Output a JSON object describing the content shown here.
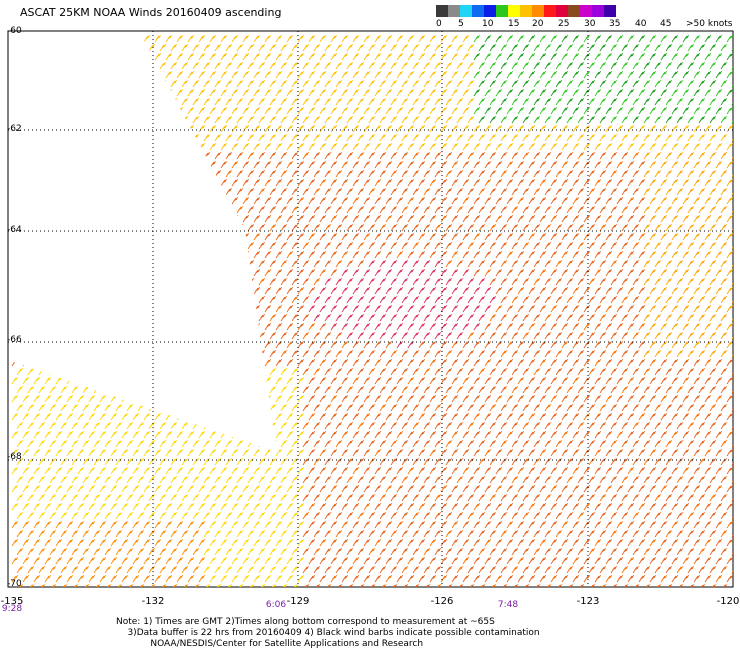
{
  "title": "ASCAT 25KM NOAA Winds 20160409 ascending",
  "scale": {
    "colors": [
      "#3a3a3a",
      "#8a8a8a",
      "#1fd4f4",
      "#0f6cf0",
      "#0a1ee8",
      "#2cc81e",
      "#ffff00",
      "#ffc000",
      "#ff8c00",
      "#ff1a1a",
      "#e0003c",
      "#8b4a1e",
      "#cc00cc",
      "#9c00dc",
      "#3e00a8"
    ],
    "labels": [
      "0",
      "5",
      "10",
      "15",
      "20",
      "25",
      "30",
      "35",
      "40",
      "45",
      ">50 knots"
    ]
  },
  "axes": {
    "lat_labels": [
      "-60",
      "-62",
      "-64",
      "-66",
      "-68",
      "-70"
    ],
    "lon_labels": [
      "-135",
      "-132",
      "-129",
      "-126",
      "-123",
      "-120"
    ],
    "times": [
      "9:28",
      "6:06",
      "7:48"
    ]
  },
  "notes": {
    "line1": "Note: 1) Times are GMT 2)Times along bottom correspond to measurement at ~65S",
    "line2": "3)Data buffer is 22 hrs from 20160409 4) Black wind barbs indicate possible contamination",
    "line3": "NOAA/NESDIS/Center for Satellite Applications and Research"
  }
}
